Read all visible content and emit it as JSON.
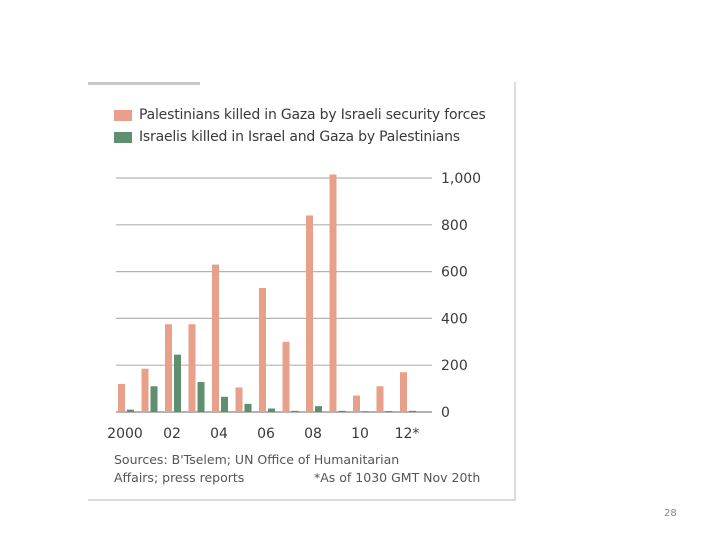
{
  "chart_data": {
    "type": "bar",
    "categories": [
      "2000",
      "2001",
      "2002",
      "2003",
      "2004",
      "2005",
      "2006",
      "2007",
      "2008",
      "2009",
      "2010",
      "2011",
      "2012"
    ],
    "tick_labels": [
      "2000",
      "02",
      "04",
      "06",
      "08",
      "10",
      "12*"
    ],
    "tick_categories": [
      "2000",
      "2002",
      "2004",
      "2006",
      "2008",
      "2010",
      "2012"
    ],
    "series": [
      {
        "name": "Palestinians killed in Gaza by Israeli security forces",
        "color": "#e8a08a",
        "values": [
          120,
          185,
          375,
          375,
          630,
          105,
          530,
          300,
          840,
          1015,
          70,
          110,
          170
        ]
      },
      {
        "name": "Israelis killed in Israel and Gaza by Palestinians",
        "color": "#5e8f6e",
        "values": [
          10,
          110,
          245,
          128,
          65,
          35,
          15,
          5,
          25,
          5,
          3,
          4,
          5
        ]
      }
    ],
    "y_ticks": [
      "1,000",
      "800",
      "600",
      "400",
      "200",
      "0"
    ],
    "ylim": [
      0,
      1000
    ],
    "grid": true,
    "legend_position": "top-left"
  },
  "source_text": {
    "line1": "Sources: B'Tselem; UN Office of Humanitarian",
    "line2": "Affairs; press reports"
  },
  "footnote": "*As of 1030 GMT Nov 20th",
  "page_number": "28"
}
